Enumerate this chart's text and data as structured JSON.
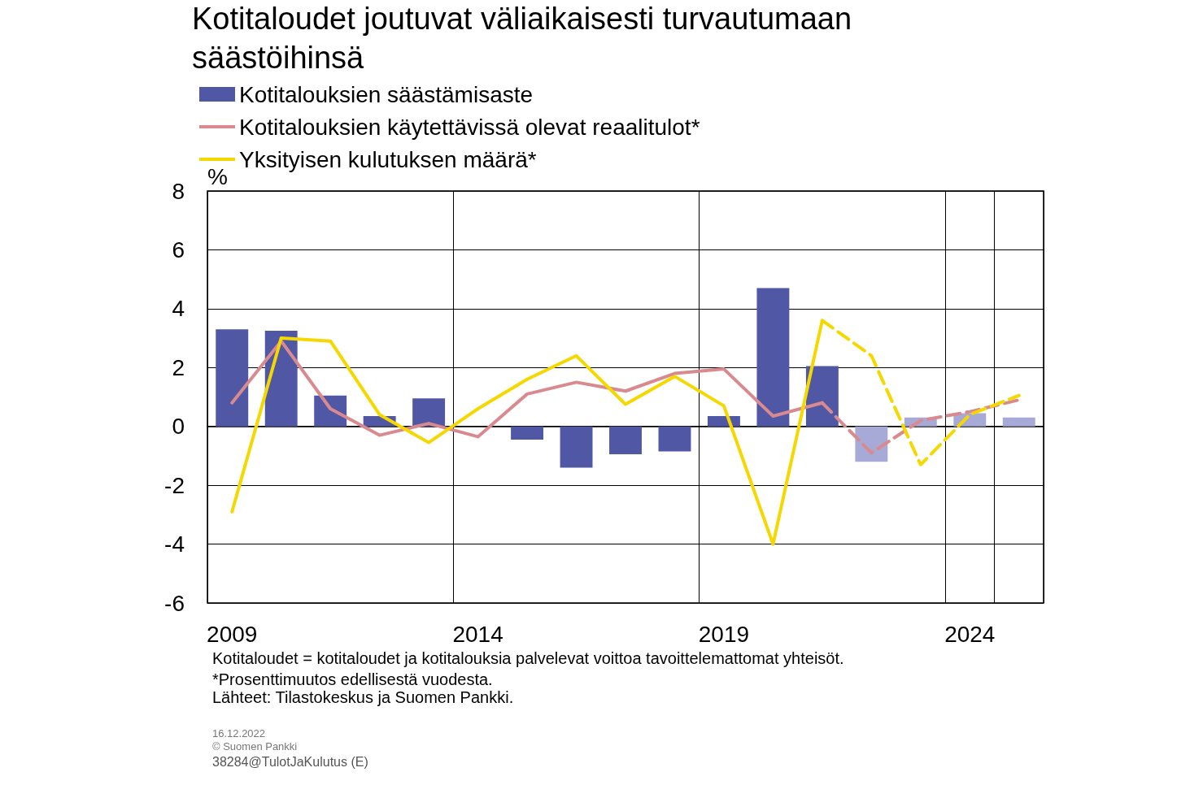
{
  "chart_data": {
    "type": "bar",
    "title": "Kotitaloudet joutuvat väliaikaisesti turvautumaan säästöihinsä",
    "ylabel": "%",
    "categories": [
      "2009",
      null,
      null,
      null,
      null,
      "2014",
      null,
      null,
      null,
      null,
      "2019",
      null,
      null,
      null,
      null,
      "2024",
      null
    ],
    "series": [
      {
        "name": "Kotitalouksien säästämisaste",
        "color": "#5057a5",
        "colors": [
          "#5057a5",
          "#5057a5",
          "#5057a5",
          "#5057a5",
          "#5057a5",
          "#5057a5",
          "#5057a5",
          "#5057a5",
          "#5057a5",
          "#5057a5",
          "#5057a5",
          "#5057a5",
          "#5057a5",
          "#a7aad6",
          "#a7aad6",
          "#a7aad6",
          "#a7aad6"
        ],
        "values": [
          3.3,
          3.25,
          1.05,
          0.35,
          0.95,
          null,
          -0.45,
          -1.4,
          -0.95,
          -0.85,
          0.35,
          4.7,
          2.05,
          -1.2,
          0.3,
          0.45,
          0.3
        ]
      },
      {
        "name": "Kotitalouksien käytettävissä olevat reaalitulot*",
        "type": "line",
        "color": "#d98a8f",
        "line_style": "solid",
        "values": [
          0.8,
          2.9,
          0.6,
          -0.3,
          0.1,
          -0.35,
          1.1,
          1.5,
          1.2,
          1.8,
          1.95,
          0.35,
          0.8,
          null,
          null,
          null,
          null
        ]
      },
      {
        "name": "Yksityisen kulutuksen määrä*",
        "type": "line",
        "color": "#f5d800",
        "line_style": "solid",
        "values": [
          -2.9,
          3.0,
          2.9,
          0.4,
          -0.55,
          0.6,
          1.6,
          2.4,
          0.75,
          1.7,
          0.7,
          -4.0,
          3.6,
          null,
          null,
          null,
          null
        ]
      },
      {
        "type": "line",
        "color": "#d98a8f",
        "line_style": "dashed",
        "values": [
          null,
          null,
          null,
          null,
          null,
          null,
          null,
          null,
          null,
          null,
          null,
          null,
          0.8,
          -0.9,
          0.2,
          0.5,
          0.9
        ]
      },
      {
        "type": "line",
        "color": "#f5d800",
        "line_style": "dashed",
        "values": [
          null,
          null,
          null,
          null,
          null,
          null,
          null,
          null,
          null,
          null,
          null,
          null,
          3.6,
          2.4,
          -1.3,
          0.4,
          1.05
        ]
      }
    ],
    "ylim": [
      -6,
      8
    ],
    "yticks": [
      -6,
      -4,
      -2,
      0,
      2,
      4,
      6,
      8
    ],
    "grid": true,
    "legend": "top left",
    "annotations": [
      "Kotitaloudet = kotitaloudet ja kotitalouksia palvelevat voittoa tavoittelemattomat yhteisöt.",
      "*Prosenttimuutos edellisestä vuodesta.",
      "Lähteet: Tilastokeskus ja Suomen Pankki.",
      "16.12.2022",
      "© Suomen Pankki",
      "38284@TulotJaKulutus (E)"
    ]
  }
}
